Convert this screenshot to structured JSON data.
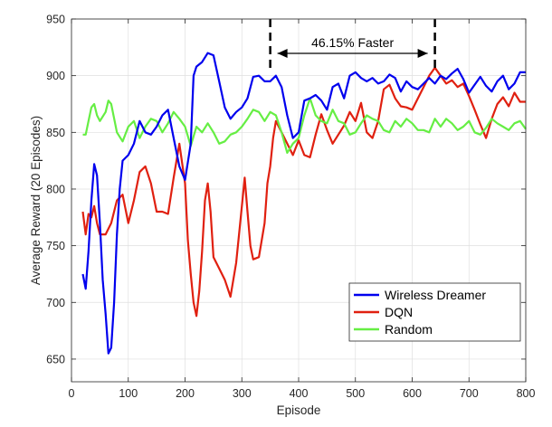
{
  "chart_data": {
    "type": "line",
    "xlabel": "Episode",
    "ylabel": "Average Reward (20 Episodes)",
    "xlim": [
      0,
      800
    ],
    "ylim": [
      630,
      950
    ],
    "xticks": [
      0,
      100,
      200,
      300,
      400,
      500,
      600,
      700,
      800
    ],
    "yticks": [
      650,
      700,
      750,
      800,
      850,
      900,
      950
    ],
    "grid": true,
    "legend_position": "bottom-right",
    "annotation": {
      "text": "46.15% Faster",
      "x_start": 350,
      "x_end": 640
    },
    "series": [
      {
        "name": "Wireless Dreamer",
        "color": "#0000ee",
        "points": [
          [
            20,
            725
          ],
          [
            25,
            712
          ],
          [
            30,
            745
          ],
          [
            35,
            790
          ],
          [
            40,
            822
          ],
          [
            45,
            812
          ],
          [
            50,
            770
          ],
          [
            55,
            720
          ],
          [
            60,
            690
          ],
          [
            65,
            655
          ],
          [
            70,
            660
          ],
          [
            75,
            700
          ],
          [
            80,
            760
          ],
          [
            85,
            800
          ],
          [
            90,
            825
          ],
          [
            100,
            830
          ],
          [
            110,
            840
          ],
          [
            120,
            860
          ],
          [
            130,
            850
          ],
          [
            140,
            848
          ],
          [
            150,
            855
          ],
          [
            160,
            865
          ],
          [
            170,
            870
          ],
          [
            180,
            845
          ],
          [
            190,
            820
          ],
          [
            200,
            808
          ],
          [
            210,
            840
          ],
          [
            215,
            900
          ],
          [
            220,
            908
          ],
          [
            230,
            912
          ],
          [
            240,
            920
          ],
          [
            250,
            918
          ],
          [
            260,
            895
          ],
          [
            270,
            872
          ],
          [
            280,
            862
          ],
          [
            290,
            868
          ],
          [
            300,
            872
          ],
          [
            310,
            880
          ],
          [
            320,
            899
          ],
          [
            330,
            900
          ],
          [
            340,
            895
          ],
          [
            350,
            895
          ],
          [
            360,
            900
          ],
          [
            370,
            890
          ],
          [
            380,
            865
          ],
          [
            390,
            845
          ],
          [
            400,
            850
          ],
          [
            410,
            878
          ],
          [
            420,
            880
          ],
          [
            430,
            883
          ],
          [
            440,
            878
          ],
          [
            450,
            870
          ],
          [
            460,
            890
          ],
          [
            470,
            893
          ],
          [
            480,
            880
          ],
          [
            490,
            900
          ],
          [
            500,
            903
          ],
          [
            510,
            898
          ],
          [
            520,
            895
          ],
          [
            530,
            898
          ],
          [
            540,
            893
          ],
          [
            550,
            895
          ],
          [
            560,
            901
          ],
          [
            570,
            898
          ],
          [
            580,
            886
          ],
          [
            590,
            895
          ],
          [
            600,
            890
          ],
          [
            610,
            888
          ],
          [
            620,
            893
          ],
          [
            630,
            898
          ],
          [
            640,
            893
          ],
          [
            650,
            900
          ],
          [
            660,
            897
          ],
          [
            670,
            902
          ],
          [
            680,
            906
          ],
          [
            690,
            897
          ],
          [
            700,
            885
          ],
          [
            710,
            892
          ],
          [
            720,
            899
          ],
          [
            730,
            891
          ],
          [
            740,
            886
          ],
          [
            750,
            895
          ],
          [
            760,
            900
          ],
          [
            770,
            888
          ],
          [
            780,
            893
          ],
          [
            790,
            903
          ],
          [
            800,
            903
          ]
        ]
      },
      {
        "name": "DQN",
        "color": "#e02010",
        "points": [
          [
            20,
            780
          ],
          [
            25,
            760
          ],
          [
            30,
            778
          ],
          [
            35,
            775
          ],
          [
            40,
            785
          ],
          [
            45,
            770
          ],
          [
            50,
            760
          ],
          [
            60,
            760
          ],
          [
            70,
            770
          ],
          [
            80,
            790
          ],
          [
            90,
            795
          ],
          [
            100,
            770
          ],
          [
            110,
            790
          ],
          [
            120,
            815
          ],
          [
            130,
            820
          ],
          [
            140,
            805
          ],
          [
            150,
            780
          ],
          [
            160,
            780
          ],
          [
            170,
            778
          ],
          [
            180,
            810
          ],
          [
            190,
            840
          ],
          [
            200,
            805
          ],
          [
            205,
            755
          ],
          [
            210,
            725
          ],
          [
            215,
            700
          ],
          [
            220,
            688
          ],
          [
            225,
            710
          ],
          [
            230,
            745
          ],
          [
            235,
            790
          ],
          [
            240,
            805
          ],
          [
            245,
            780
          ],
          [
            250,
            740
          ],
          [
            260,
            730
          ],
          [
            270,
            720
          ],
          [
            280,
            705
          ],
          [
            290,
            735
          ],
          [
            300,
            785
          ],
          [
            305,
            810
          ],
          [
            310,
            780
          ],
          [
            315,
            750
          ],
          [
            320,
            738
          ],
          [
            330,
            740
          ],
          [
            340,
            770
          ],
          [
            345,
            805
          ],
          [
            350,
            820
          ],
          [
            355,
            845
          ],
          [
            360,
            860
          ],
          [
            370,
            850
          ],
          [
            380,
            840
          ],
          [
            390,
            830
          ],
          [
            400,
            843
          ],
          [
            410,
            830
          ],
          [
            420,
            828
          ],
          [
            430,
            848
          ],
          [
            440,
            866
          ],
          [
            450,
            852
          ],
          [
            460,
            840
          ],
          [
            470,
            848
          ],
          [
            480,
            856
          ],
          [
            490,
            868
          ],
          [
            500,
            860
          ],
          [
            510,
            876
          ],
          [
            520,
            850
          ],
          [
            530,
            845
          ],
          [
            540,
            860
          ],
          [
            550,
            888
          ],
          [
            560,
            892
          ],
          [
            570,
            880
          ],
          [
            580,
            873
          ],
          [
            590,
            872
          ],
          [
            600,
            870
          ],
          [
            610,
            880
          ],
          [
            620,
            890
          ],
          [
            630,
            900
          ],
          [
            640,
            907
          ],
          [
            650,
            900
          ],
          [
            660,
            893
          ],
          [
            670,
            896
          ],
          [
            680,
            890
          ],
          [
            690,
            893
          ],
          [
            700,
            882
          ],
          [
            710,
            870
          ],
          [
            720,
            857
          ],
          [
            730,
            845
          ],
          [
            740,
            862
          ],
          [
            750,
            875
          ],
          [
            760,
            881
          ],
          [
            770,
            873
          ],
          [
            780,
            885
          ],
          [
            790,
            877
          ],
          [
            800,
            877
          ]
        ]
      },
      {
        "name": "Random",
        "color": "#66ee44",
        "points": [
          [
            20,
            848
          ],
          [
            25,
            848
          ],
          [
            30,
            860
          ],
          [
            35,
            872
          ],
          [
            40,
            875
          ],
          [
            45,
            865
          ],
          [
            50,
            860
          ],
          [
            60,
            868
          ],
          [
            65,
            878
          ],
          [
            70,
            875
          ],
          [
            80,
            850
          ],
          [
            90,
            842
          ],
          [
            100,
            855
          ],
          [
            110,
            860
          ],
          [
            120,
            845
          ],
          [
            130,
            855
          ],
          [
            140,
            862
          ],
          [
            150,
            860
          ],
          [
            160,
            850
          ],
          [
            170,
            858
          ],
          [
            180,
            868
          ],
          [
            190,
            862
          ],
          [
            200,
            855
          ],
          [
            210,
            838
          ],
          [
            220,
            855
          ],
          [
            230,
            850
          ],
          [
            240,
            858
          ],
          [
            250,
            850
          ],
          [
            260,
            840
          ],
          [
            270,
            842
          ],
          [
            280,
            848
          ],
          [
            290,
            850
          ],
          [
            300,
            855
          ],
          [
            310,
            862
          ],
          [
            320,
            870
          ],
          [
            330,
            868
          ],
          [
            340,
            860
          ],
          [
            350,
            868
          ],
          [
            360,
            865
          ],
          [
            370,
            850
          ],
          [
            380,
            832
          ],
          [
            390,
            840
          ],
          [
            400,
            845
          ],
          [
            410,
            865
          ],
          [
            420,
            880
          ],
          [
            430,
            865
          ],
          [
            440,
            860
          ],
          [
            450,
            858
          ],
          [
            460,
            870
          ],
          [
            470,
            860
          ],
          [
            480,
            858
          ],
          [
            490,
            848
          ],
          [
            500,
            850
          ],
          [
            510,
            858
          ],
          [
            520,
            865
          ],
          [
            530,
            862
          ],
          [
            540,
            860
          ],
          [
            550,
            852
          ],
          [
            560,
            850
          ],
          [
            570,
            860
          ],
          [
            580,
            855
          ],
          [
            590,
            862
          ],
          [
            600,
            858
          ],
          [
            610,
            852
          ],
          [
            620,
            852
          ],
          [
            630,
            850
          ],
          [
            640,
            862
          ],
          [
            650,
            855
          ],
          [
            660,
            862
          ],
          [
            670,
            858
          ],
          [
            680,
            852
          ],
          [
            690,
            855
          ],
          [
            700,
            860
          ],
          [
            710,
            850
          ],
          [
            720,
            848
          ],
          [
            730,
            854
          ],
          [
            740,
            862
          ],
          [
            750,
            858
          ],
          [
            760,
            855
          ],
          [
            770,
            852
          ],
          [
            780,
            858
          ],
          [
            790,
            860
          ],
          [
            800,
            853
          ]
        ]
      }
    ]
  }
}
